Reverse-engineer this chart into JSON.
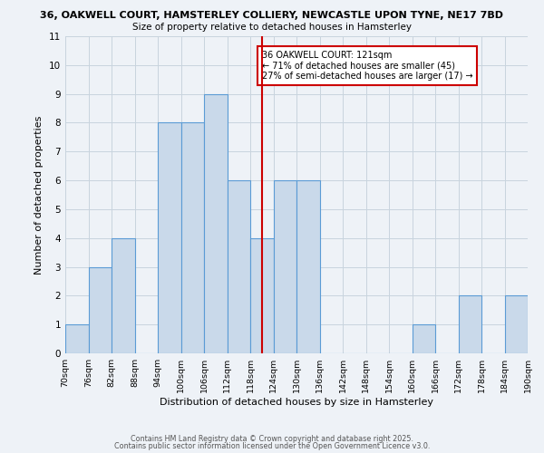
{
  "title_line1": "36, OAKWELL COURT, HAMSTERLEY COLLIERY, NEWCASTLE UPON TYNE, NE17 7BD",
  "title_line2": "Size of property relative to detached houses in Hamsterley",
  "xlabel": "Distribution of detached houses by size in Hamsterley",
  "ylabel": "Number of detached properties",
  "bin_edges": [
    70,
    76,
    82,
    88,
    94,
    100,
    106,
    112,
    118,
    124,
    130,
    136,
    142,
    148,
    154,
    160,
    166,
    172,
    178,
    184,
    190
  ],
  "bin_counts": [
    1,
    3,
    4,
    0,
    8,
    8,
    9,
    6,
    4,
    6,
    6,
    0,
    0,
    0,
    0,
    1,
    0,
    2,
    0,
    2
  ],
  "bar_facecolor": "#c9d9ea",
  "bar_edgecolor": "#5b9bd5",
  "grid_color": "#c8d4de",
  "background_color": "#eef2f7",
  "property_line_x": 121,
  "property_line_color": "#cc0000",
  "annotation_text": "36 OAKWELL COURT: 121sqm\n← 71% of detached houses are smaller (45)\n27% of semi-detached houses are larger (17) →",
  "annotation_box_edgecolor": "#cc0000",
  "annotation_box_facecolor": "#ffffff",
  "yticks": [
    0,
    1,
    2,
    3,
    4,
    5,
    6,
    7,
    8,
    9,
    10,
    11
  ],
  "ylim": [
    0,
    11
  ],
  "footer_line1": "Contains HM Land Registry data © Crown copyright and database right 2025.",
  "footer_line2": "Contains public sector information licensed under the Open Government Licence v3.0.",
  "tick_labels": [
    "70sqm",
    "76sqm",
    "82sqm",
    "88sqm",
    "94sqm",
    "100sqm",
    "106sqm",
    "112sqm",
    "118sqm",
    "124sqm",
    "130sqm",
    "136sqm",
    "142sqm",
    "148sqm",
    "154sqm",
    "160sqm",
    "166sqm",
    "172sqm",
    "178sqm",
    "184sqm",
    "190sqm"
  ]
}
